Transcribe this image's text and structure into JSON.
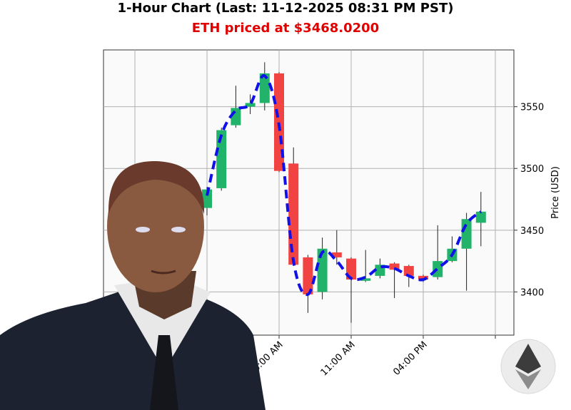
{
  "chart_data": {
    "type": "candlestick",
    "title": "1-Hour Chart (Last: 11-12-2025 08:31 PM PST)",
    "subtitle": "ETH priced at $3468.0200",
    "ylabel": "Price (USD)",
    "categories": [
      null,
      null,
      null,
      null,
      null,
      "06:00 AM",
      null,
      null,
      null,
      null,
      "11:00 AM",
      null,
      null,
      null,
      null,
      "04:00 PM",
      null,
      null,
      null,
      null
    ],
    "open": [
      3468,
      3484,
      3535,
      3550,
      3553,
      3577,
      3504,
      3428,
      3400,
      3432,
      3427,
      3409,
      3413,
      3423,
      3421,
      3413,
      3412,
      3425,
      3435,
      3456
    ],
    "high": [
      3485,
      3533,
      3567,
      3560,
      3586,
      3578,
      3517,
      3430,
      3444,
      3450,
      3428,
      3434,
      3427,
      3424,
      3422,
      3414,
      3454,
      3445,
      3464,
      3481
    ],
    "low": [
      3462,
      3482,
      3533,
      3544,
      3547,
      3497,
      3421,
      3383,
      3394,
      3422,
      3375,
      3408,
      3411,
      3395,
      3404,
      3408,
      3410,
      3424,
      3401,
      3437
    ],
    "close": [
      3483,
      3531,
      3549,
      3553,
      3577,
      3498,
      3422,
      3398,
      3435,
      3428,
      3410,
      3411,
      3422,
      3418,
      3413,
      3410,
      3425,
      3435,
      3459,
      3465
    ],
    "up_color": "#22b36b",
    "down_color": "#f24343",
    "line": {
      "color": "#1010e8",
      "values": [
        3478,
        3527,
        3547,
        3552,
        3575,
        3535,
        3425,
        3398,
        3432,
        3425,
        3411,
        3412,
        3420,
        3419,
        3413,
        3410,
        3419,
        3430,
        3455,
        3465
      ]
    },
    "ylim": [
      3365,
      3596
    ],
    "yticks": [
      3400,
      3450,
      3500,
      3550
    ],
    "grid": true
  }
}
